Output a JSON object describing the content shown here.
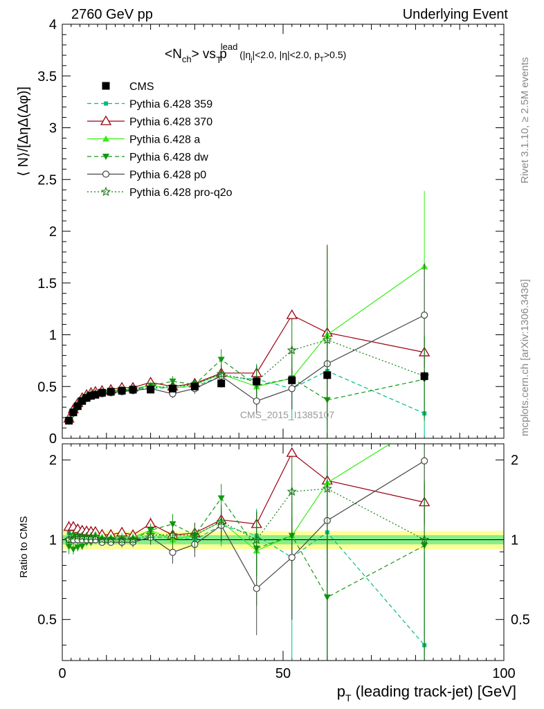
{
  "header": {
    "left": "2760 GeV pp",
    "right": "Underlying Event"
  },
  "side_labels": {
    "rivet": "Rivet 3.1.10, ≥ 2.5M events",
    "mcplots": "mcplots.cern.ch [arXiv:1306.3436]"
  },
  "plot_title": {
    "main": "<N",
    "main_sub": "ch",
    "vs": "> vs p",
    "pt_sup": "lead",
    "pt_sub": "T",
    "cuts_open": " (|η",
    "cuts_j": "j",
    "cuts_mid": "|<2.0, |η|<2.0, p",
    "cuts_T": "T",
    "cuts_close": ">0.5)"
  },
  "y_label_top": "⟨ N⟩/[ΔηΔ(Δφ)]",
  "y_label_ratio": "Ratio to CMS",
  "x_label": {
    "p": "p",
    "sub": "T",
    "rest": " (leading track-jet) [GeV]"
  },
  "watermark": "CMS_2015_I1385107",
  "colors": {
    "cms": "#000000",
    "p359": "#00bb88",
    "p370": "#990011",
    "pa": "#33ee11",
    "pdw": "#119911",
    "pp0": "#444444",
    "pq2o": "#117711",
    "band_inner": "#88ee88",
    "band_outer": "#ffff99"
  },
  "chart_data": {
    "type": "scatter",
    "title": "<Nch> vs pT lead (|ηj|<2.0, |η|<2.0, pT>0.5)",
    "xlabel": "pT (leading track-jet) [GeV]",
    "ylabel": "⟨ N⟩/[ΔηΔ(Δφ)]",
    "ratio_ylabel": "Ratio to CMS",
    "xlim": [
      0,
      100
    ],
    "ylim": [
      0,
      4
    ],
    "ratio_ylim": [
      0.35,
      2.3
    ],
    "x_ticks": [
      0,
      50,
      100
    ],
    "y_ticks": [
      0,
      0.5,
      1,
      1.5,
      2,
      2.5,
      3,
      3.5,
      4
    ],
    "ratio_ticks": [
      0.5,
      1,
      2
    ],
    "x": [
      1.5,
      2.5,
      3.5,
      4.5,
      5.5,
      6.5,
      7.5,
      9,
      11,
      13.5,
      16,
      20,
      25,
      30,
      36,
      44,
      52,
      60,
      82
    ],
    "series": [
      {
        "name": "CMS",
        "key": "cms",
        "marker": "square",
        "dash": "none",
        "values": [
          0.17,
          0.25,
          0.31,
          0.36,
          0.39,
          0.41,
          0.42,
          0.44,
          0.45,
          0.46,
          0.47,
          0.47,
          0.48,
          0.5,
          0.53,
          0.55,
          0.56,
          0.61,
          0.6
        ],
        "errors": [
          0.02,
          0.02,
          0.02,
          0.02,
          0.02,
          0.02,
          0.02,
          0.02,
          0.02,
          0.02,
          0.02,
          0.02,
          0.03,
          0.03,
          0.04,
          0.04,
          0.04,
          0.04,
          0.05
        ]
      },
      {
        "name": "Pythia 6.428 359",
        "key": "p359",
        "marker": "smallsquare",
        "dash": "6,4",
        "values": [
          0.18,
          0.26,
          0.32,
          0.37,
          0.4,
          0.42,
          0.43,
          0.44,
          0.45,
          0.46,
          0.47,
          0.48,
          0.49,
          0.5,
          0.6,
          0.57,
          0.48,
          0.65,
          0.24
        ],
        "errors": [
          0.01,
          0.01,
          0.01,
          0.01,
          0.01,
          0.01,
          0.01,
          0.01,
          0.01,
          0.02,
          0.02,
          0.03,
          0.05,
          0.05,
          0.1,
          0.15,
          0.3,
          0.6,
          0.3
        ]
      },
      {
        "name": "Pythia 6.428 370",
        "key": "p370",
        "marker": "opentriangle",
        "dash": "none",
        "values": [
          0.19,
          0.28,
          0.34,
          0.39,
          0.42,
          0.44,
          0.45,
          0.46,
          0.47,
          0.49,
          0.49,
          0.54,
          0.5,
          0.53,
          0.63,
          0.63,
          1.19,
          1.02,
          0.83
        ],
        "errors": [
          0.01,
          0.01,
          0.01,
          0.01,
          0.01,
          0.01,
          0.01,
          0.01,
          0.01,
          0.02,
          0.02,
          0.03,
          0.05,
          0.05,
          0.06,
          0.07,
          0.05,
          0.85,
          0.15
        ]
      },
      {
        "name": "Pythia 6.428 a",
        "key": "pa",
        "marker": "triangle",
        "dash": "none",
        "values": [
          0.17,
          0.26,
          0.32,
          0.37,
          0.4,
          0.42,
          0.44,
          0.45,
          0.46,
          0.47,
          0.48,
          0.51,
          0.48,
          0.52,
          0.62,
          0.5,
          0.58,
          1.0,
          1.66
        ],
        "errors": [
          0.01,
          0.01,
          0.01,
          0.01,
          0.01,
          0.01,
          0.01,
          0.01,
          0.01,
          0.02,
          0.02,
          0.03,
          0.05,
          0.05,
          0.08,
          0.1,
          0.15,
          0.5,
          0.73
        ]
      },
      {
        "name": "Pythia 6.428 dw",
        "key": "pdw",
        "marker": "triangledown",
        "dash": "6,4",
        "values": [
          0.16,
          0.23,
          0.29,
          0.34,
          0.38,
          0.4,
          0.42,
          0.44,
          0.45,
          0.46,
          0.47,
          0.51,
          0.55,
          0.52,
          0.76,
          0.51,
          0.58,
          0.37,
          0.57
        ],
        "errors": [
          0.01,
          0.01,
          0.01,
          0.01,
          0.01,
          0.01,
          0.01,
          0.01,
          0.01,
          0.02,
          0.02,
          0.03,
          0.05,
          0.05,
          0.1,
          0.2,
          0.3,
          0.3,
          0.4
        ]
      },
      {
        "name": "Pythia 6.428 p0",
        "key": "pp0",
        "marker": "opencircle",
        "dash": "none",
        "values": [
          0.17,
          0.25,
          0.31,
          0.36,
          0.39,
          0.41,
          0.42,
          0.43,
          0.44,
          0.45,
          0.46,
          0.48,
          0.43,
          0.48,
          0.6,
          0.36,
          0.48,
          0.72,
          1.19
        ],
        "errors": [
          0.01,
          0.01,
          0.01,
          0.01,
          0.01,
          0.01,
          0.01,
          0.01,
          0.01,
          0.02,
          0.02,
          0.03,
          0.04,
          0.05,
          0.08,
          0.12,
          0.2,
          0.3,
          0.5
        ]
      },
      {
        "name": "Pythia 6.428 pro-q2o",
        "key": "pq2o",
        "marker": "star",
        "dash": "2,3",
        "values": [
          0.17,
          0.26,
          0.32,
          0.37,
          0.4,
          0.42,
          0.43,
          0.44,
          0.45,
          0.46,
          0.47,
          0.49,
          0.5,
          0.52,
          0.62,
          0.55,
          0.85,
          0.95,
          0.6
        ],
        "errors": [
          0.01,
          0.01,
          0.01,
          0.01,
          0.01,
          0.01,
          0.01,
          0.01,
          0.01,
          0.02,
          0.02,
          0.03,
          0.05,
          0.05,
          0.1,
          0.15,
          0.3,
          0.9,
          0.4
        ]
      }
    ],
    "ratio_band": {
      "inner": 0.04,
      "outer": 0.08
    },
    "legend_position": "top-left"
  }
}
